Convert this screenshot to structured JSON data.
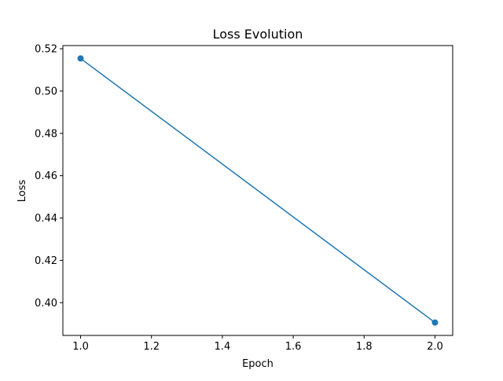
{
  "chart_data": {
    "type": "line",
    "title": "Loss Evolution",
    "xlabel": "Epoch",
    "ylabel": "Loss",
    "xlim": [
      0.95,
      2.05
    ],
    "ylim": [
      0.3845,
      0.5215
    ],
    "xticks": [
      1.0,
      1.2,
      1.4,
      1.6,
      1.8,
      2.0
    ],
    "xtick_labels": [
      "1.0",
      "1.2",
      "1.4",
      "1.6",
      "1.8",
      "2.0"
    ],
    "yticks": [
      0.4,
      0.42,
      0.44,
      0.46,
      0.48,
      0.5,
      0.52
    ],
    "ytick_labels": [
      "0.40",
      "0.42",
      "0.44",
      "0.46",
      "0.48",
      "0.50",
      "0.52"
    ],
    "grid": false,
    "series": [
      {
        "x": [
          1,
          2
        ],
        "values": [
          0.5154,
          0.3906
        ],
        "color": "#1f77b4",
        "marker": "circle"
      }
    ]
  }
}
